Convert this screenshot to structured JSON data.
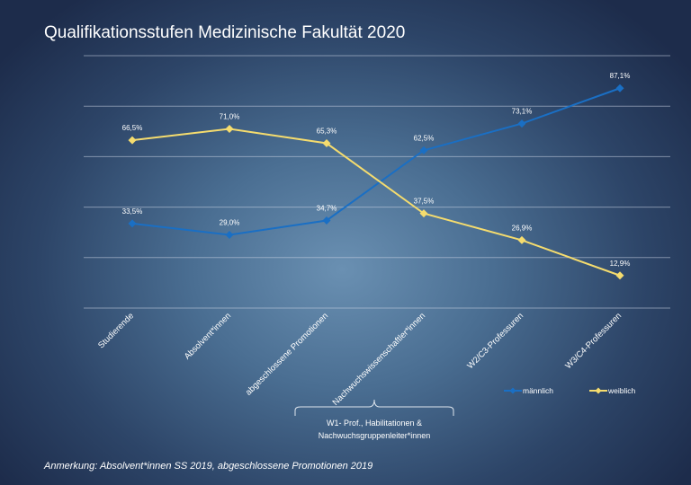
{
  "title": "Qualifikationsstufen Medizinische Fakultät 2020",
  "note": "Anmerkung: Absolvent*innen SS 2019, abgeschlossene Promotionen 2019",
  "bracket_label": [
    "W1- Prof., Habilitationen &",
    "Nachwuchsgruppenleiter*innen"
  ],
  "chart_data": {
    "type": "line",
    "categories": [
      "Studierende",
      "Absolvent*innen",
      "abgeschlossene Promotionen",
      "Nachwuchswissenschaftler*innen",
      "W2/C3-Professuren",
      "W3/C4-Professuren"
    ],
    "series": [
      {
        "name": "männlich",
        "color": "#1a6fc4",
        "values": [
          33.5,
          29.0,
          34.7,
          62.5,
          73.1,
          87.1
        ],
        "labels": [
          "33,5%",
          "29,0%",
          "34,7%",
          "62,5%",
          "73,1%",
          "87,1%"
        ]
      },
      {
        "name": "weiblich",
        "color": "#f5dc6e",
        "values": [
          66.5,
          71.0,
          65.3,
          37.5,
          26.9,
          12.9
        ],
        "labels": [
          "66,5%",
          "71,0%",
          "65,3%",
          "37,5%",
          "26,9%",
          "12,9%"
        ]
      }
    ],
    "ylim": [
      0,
      100
    ],
    "grid": true,
    "legend": "bottom-right"
  }
}
